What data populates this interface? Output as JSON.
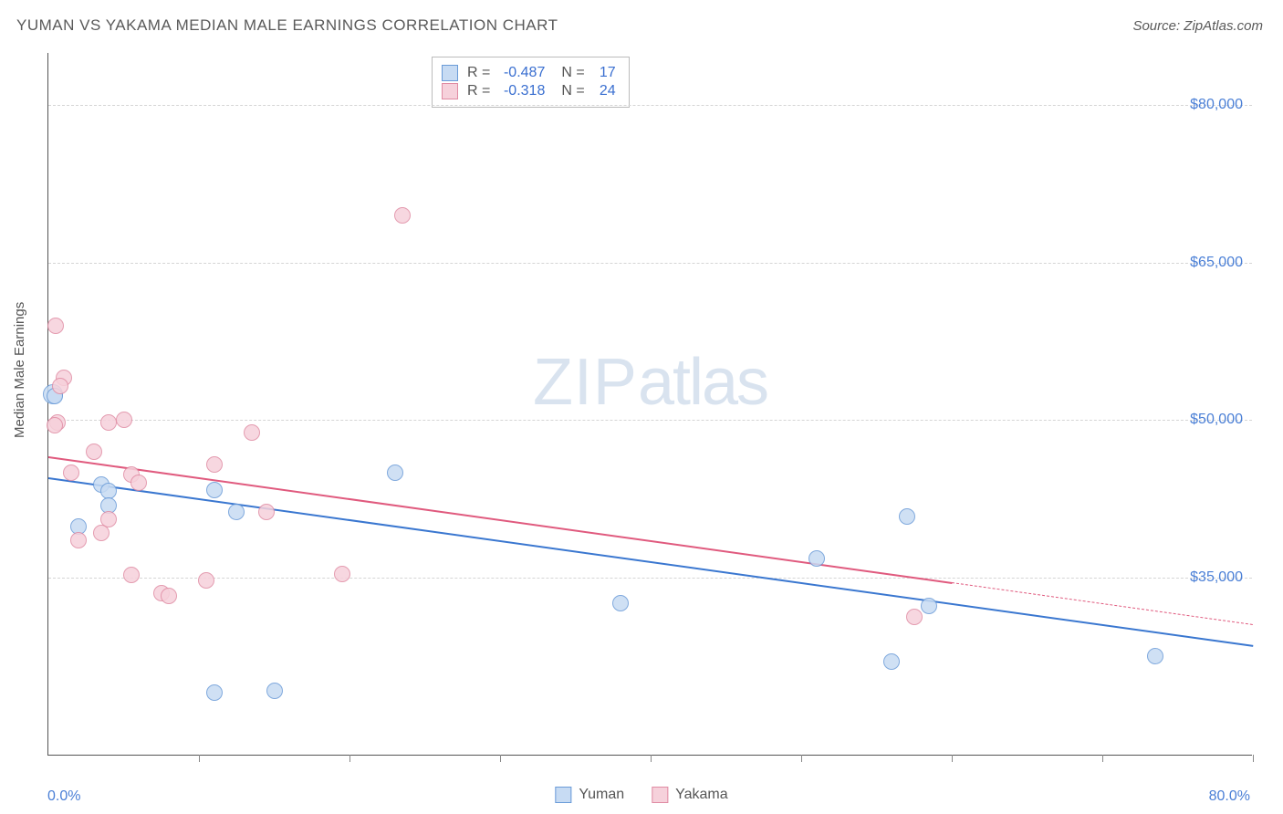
{
  "header": {
    "title": "YUMAN VS YAKAMA MEDIAN MALE EARNINGS CORRELATION CHART",
    "source": "Source: ZipAtlas.com"
  },
  "chart": {
    "type": "scatter",
    "watermark": "ZIPatlas",
    "ylabel": "Median Male Earnings",
    "xlim": [
      0,
      80
    ],
    "ylim": [
      18000,
      85000
    ],
    "x_min_label": "0.0%",
    "x_max_label": "80.0%",
    "y_ticks": [
      35000,
      50000,
      65000,
      80000
    ],
    "y_tick_labels": [
      "$35,000",
      "$50,000",
      "$65,000",
      "$80,000"
    ],
    "x_tick_positions": [
      0,
      10,
      20,
      30,
      40,
      50,
      60,
      70,
      80
    ],
    "grid_color": "#d5d5d5",
    "background_color": "#ffffff",
    "series": [
      {
        "name": "Yuman",
        "fill": "#c7dbf3",
        "stroke": "#6a9bd8",
        "marker_r": 9,
        "r_value": "-0.487",
        "n_value": "17",
        "trend": {
          "x1": 0,
          "y1": 44500,
          "x2": 80,
          "y2": 28500,
          "solid_until": 80,
          "width": 2.5,
          "color": "#3a77d0"
        },
        "points": [
          {
            "x": 0.3,
            "y": 52500,
            "r": 11
          },
          {
            "x": 0.4,
            "y": 52300,
            "r": 9
          },
          {
            "x": 3.5,
            "y": 43800
          },
          {
            "x": 4.0,
            "y": 43200
          },
          {
            "x": 4.0,
            "y": 41800
          },
          {
            "x": 11.0,
            "y": 43300
          },
          {
            "x": 12.5,
            "y": 41200
          },
          {
            "x": 23.0,
            "y": 45000
          },
          {
            "x": 11.0,
            "y": 24000
          },
          {
            "x": 15.0,
            "y": 24200
          },
          {
            "x": 38.0,
            "y": 32500
          },
          {
            "x": 51.0,
            "y": 36800
          },
          {
            "x": 57.0,
            "y": 40800
          },
          {
            "x": 56.0,
            "y": 27000
          },
          {
            "x": 58.5,
            "y": 32300
          },
          {
            "x": 73.5,
            "y": 27500
          },
          {
            "x": 2.0,
            "y": 39800
          }
        ]
      },
      {
        "name": "Yakama",
        "fill": "#f6d1db",
        "stroke": "#e08ba3",
        "marker_r": 9,
        "r_value": "-0.318",
        "n_value": "24",
        "trend": {
          "x1": 0,
          "y1": 46500,
          "x2": 80,
          "y2": 30500,
          "solid_until": 60,
          "width": 2,
          "color": "#e05a7e"
        },
        "points": [
          {
            "x": 0.5,
            "y": 59000
          },
          {
            "x": 1.0,
            "y": 54000
          },
          {
            "x": 0.8,
            "y": 53200
          },
          {
            "x": 0.6,
            "y": 49800
          },
          {
            "x": 0.4,
            "y": 49500
          },
          {
            "x": 4.0,
            "y": 49800
          },
          {
            "x": 5.0,
            "y": 50000
          },
          {
            "x": 3.0,
            "y": 47000
          },
          {
            "x": 1.5,
            "y": 45000
          },
          {
            "x": 5.5,
            "y": 44800
          },
          {
            "x": 6.0,
            "y": 44000
          },
          {
            "x": 4.0,
            "y": 40500
          },
          {
            "x": 2.0,
            "y": 38500
          },
          {
            "x": 3.5,
            "y": 39200
          },
          {
            "x": 13.5,
            "y": 48800
          },
          {
            "x": 11.0,
            "y": 45800
          },
          {
            "x": 14.5,
            "y": 41200
          },
          {
            "x": 5.5,
            "y": 35200
          },
          {
            "x": 7.5,
            "y": 33500
          },
          {
            "x": 8.0,
            "y": 33200
          },
          {
            "x": 10.5,
            "y": 34700
          },
          {
            "x": 19.5,
            "y": 35300
          },
          {
            "x": 23.5,
            "y": 69500
          },
          {
            "x": 57.5,
            "y": 31200
          }
        ]
      }
    ],
    "legend": {
      "items": [
        {
          "label": "Yuman",
          "fill": "#c7dbf3",
          "stroke": "#6a9bd8"
        },
        {
          "label": "Yakama",
          "fill": "#f6d1db",
          "stroke": "#e08ba3"
        }
      ]
    }
  }
}
